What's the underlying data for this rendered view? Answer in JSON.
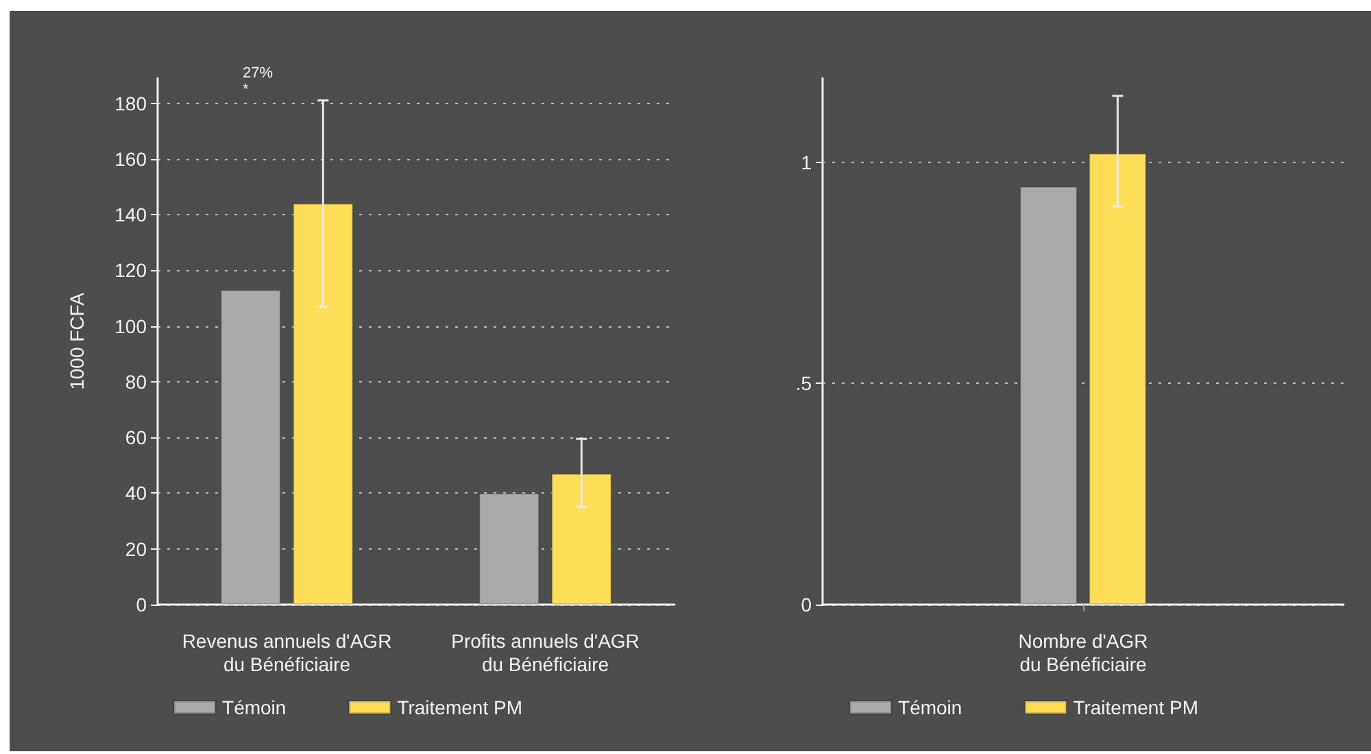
{
  "chart_data": [
    {
      "type": "bar",
      "ylabel": "1000 FCFA",
      "categories": [
        "Revenus annuels d'AGR\ndu Bénéficiaire",
        "Profits annuels d'AGR\ndu Bénéficiaire"
      ],
      "series": [
        {
          "name": "Témoin",
          "color": "#aaaaaa",
          "values": [
            113,
            40
          ]
        },
        {
          "name": "Traitement PM",
          "color": "#ffdd57",
          "values": [
            144,
            47
          ],
          "errors": [
            [
              107,
              181
            ],
            [
              35,
              59.5
            ]
          ]
        }
      ],
      "ylim": [
        0,
        189
      ],
      "yticks": [
        0,
        20,
        40,
        60,
        80,
        100,
        120,
        140,
        160,
        180
      ],
      "grid": "y",
      "legend": "bottom",
      "annotations": [
        "27%",
        "*"
      ]
    },
    {
      "type": "bar",
      "categories": [
        "Nombre d'AGR\ndu Bénéficiaire"
      ],
      "series": [
        {
          "name": "Témoin",
          "color": "#aaaaaa",
          "values": [
            0.945
          ]
        },
        {
          "name": "Traitement PM",
          "color": "#ffdd57",
          "values": [
            1.02
          ],
          "errors": [
            [
              0.9,
              1.15
            ]
          ]
        }
      ],
      "ylim": [
        0,
        1.19
      ],
      "yticks": [
        0,
        {
          "value": 0.5,
          "label": ".5"
        },
        1
      ],
      "grid": "y",
      "legend": "bottom"
    }
  ]
}
